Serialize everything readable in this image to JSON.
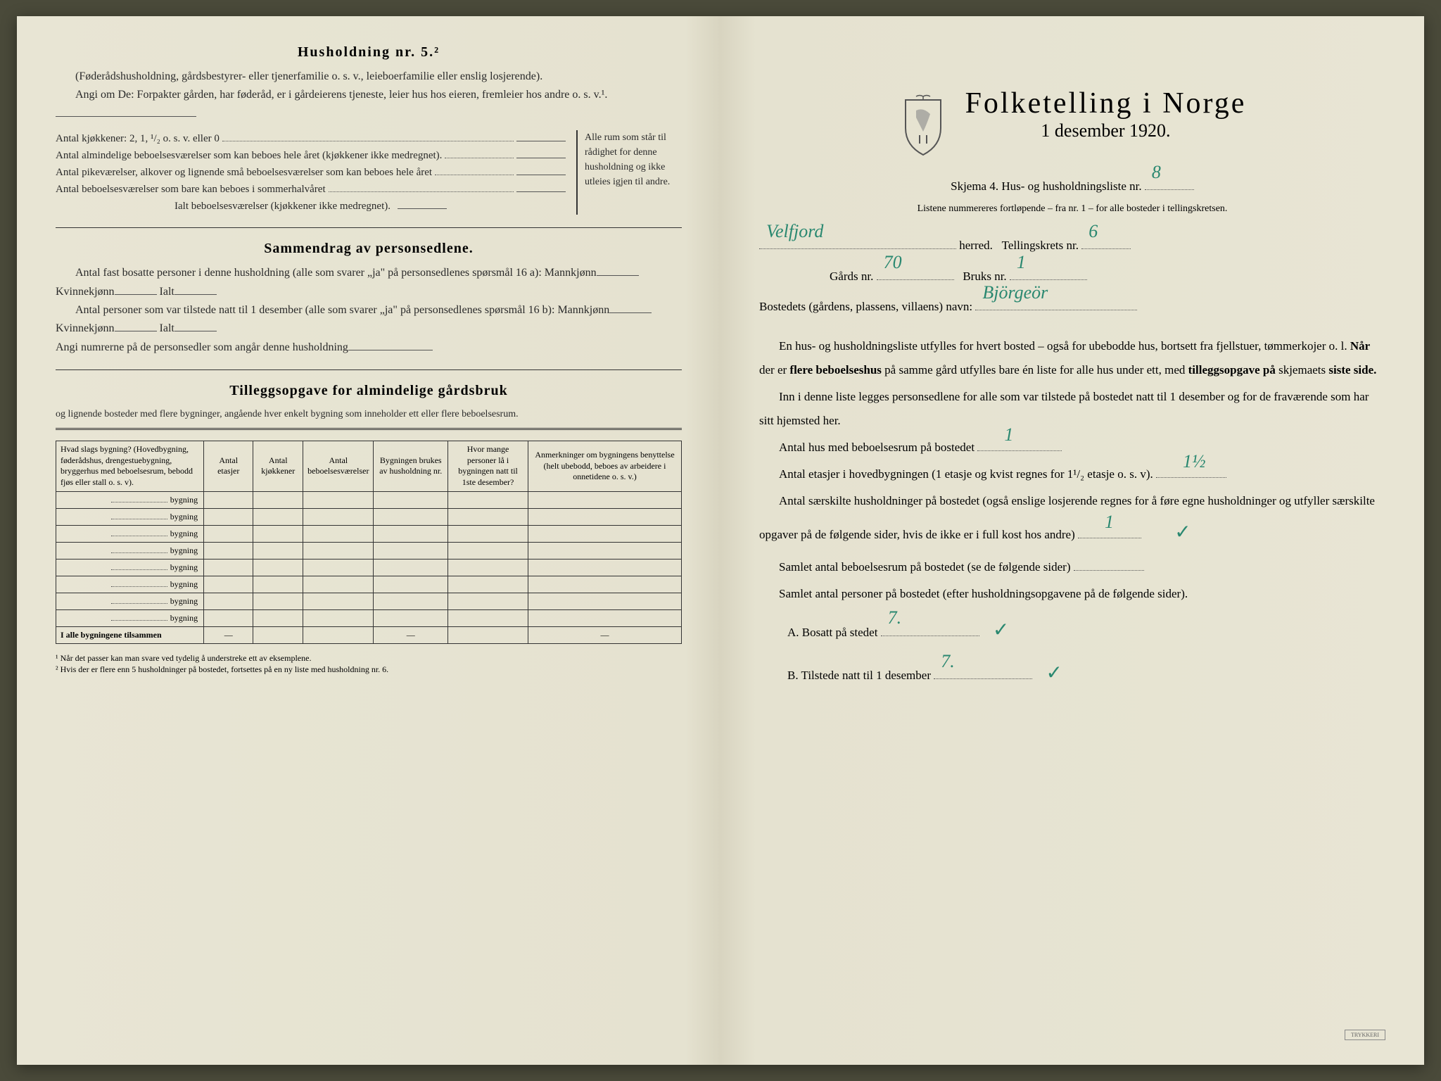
{
  "left": {
    "section1": {
      "title": "Husholdning nr. 5.²",
      "intro": "(Føderådshusholdning, gårdsbestyrer- eller tjenerfamilie o. s. v., leieboerfamilie eller enslig losjerende).",
      "line1": "Angi om De: Forpakter gården, har føderåd, er i gårdeierens tjeneste, leier hus hos eieren, fremleier hos andre o. s. v.¹.",
      "kitchens": "Antal kjøkkener: 2, 1, ¹/₂ o. s. v. eller 0",
      "rooms": [
        "Antal almindelige beboelsesværelser som kan beboes hele året (kjøkkener ikke medregnet).",
        "Antal pikeværelser, alkover og lignende små beboelsesværelser som kan beboes hele året",
        "Antal beboelsesværelser som bare kan beboes i sommerhalvåret"
      ],
      "total": "Ialt beboelsesværelser  (kjøkkener ikke medregnet).",
      "brace_text": "Alle rum som står til rådighet for denne husholdning og ikke utleies igjen til andre."
    },
    "section2": {
      "title": "Sammendrag av personsedlene.",
      "line1": "Antal fast bosatte personer i denne husholdning (alle som svarer „ja\" på personsedlenes spørsmål 16 a): Mannkjønn",
      "kvin": "Kvinnekjønn",
      "ialt": "Ialt",
      "line2": "Antal personer som var tilstede natt til 1 desember (alle som svarer „ja\" på personsedlenes spørsmål 16 b): Mannkjønn",
      "line3": "Angi numrerne på de personsedler som angår denne husholdning"
    },
    "section3": {
      "title": "Tilleggsopgave for almindelige gårdsbruk",
      "subtitle": "og lignende bosteder med flere bygninger, angående hver enkelt bygning som inneholder ett eller flere beboelsesrum.",
      "headers": [
        "Hvad slags bygning?\n(Hovedbygning, føderådshus, drengestuebygning, bryggerhus med beboelsesrum, bebodd fjøs eller stall o. s. v).",
        "Antal etasjer",
        "Antal kjøkkener",
        "Antal beboelsesværelser",
        "Bygningen brukes av husholdning nr.",
        "Hvor mange personer lå i bygningen natt til 1ste desember?",
        "Anmerkninger om bygningens benyttelse (helt ubebodd, beboes av arbeidere i onnetidene o. s. v.)"
      ],
      "building_label": "bygning",
      "total_row": "I alle bygningene tilsammen",
      "rows": 8
    },
    "footnotes": [
      "¹  Når det passer kan man svare ved tydelig å understreke ett av eksemplene.",
      "²  Hvis der er flere enn 5 husholdninger på bostedet, fortsettes på en ny liste med husholdning nr. 6."
    ]
  },
  "right": {
    "title": "Folketelling i Norge",
    "subtitle": "1 desember 1920.",
    "form_label": "Skjema 4.  Hus- og husholdningsliste nr.",
    "form_nr": "8",
    "list_note": "Listene nummereres fortløpende – fra nr. 1 – for alle bosteder i tellingskretsen.",
    "herred_val": "Velfjord",
    "herred_label": "herred.",
    "krets_label": "Tellingskrets nr.",
    "krets_val": "6",
    "gards_label": "Gårds nr.",
    "gards_val": "70",
    "bruks_label": "Bruks nr.",
    "bruks_val": "1",
    "bosted_label": "Bostedets (gårdens, plassens, villaens) navn:",
    "bosted_val": "Björgeör",
    "para1": "En hus- og husholdningsliste utfylles for hvert bosted – også for ubebodde hus, bortsett fra fjellstuer, tømmerkojer o. l.  Når der er flere beboelseshus på samme gård utfylles bare én liste for alle hus under ett, med tilleggsopgave på skjemaets siste side.",
    "para2": "Inn i denne liste legges personsedlene for alle som var tilstede på bostedet natt til 1 desember og for de fraværende som har sitt hjemsted her.",
    "q1": "Antal hus med beboelsesrum på bostedet",
    "q1_val": "1",
    "q2a": "Antal etasjer i hovedbygningen (1 etasje og kvist regnes for 1¹/₂ etasje o. s. v).",
    "q2_val": "1½",
    "q3": "Antal særskilte husholdninger på bostedet (også enslige losjerende regnes for å føre egne husholdninger og utfyller særskilte opgaver på de følgende sider, hvis de ikke er i full kost hos andre)",
    "q3_val": "1",
    "q4": "Samlet antal beboelsesrum på bostedet (se de følgende sider)",
    "q5": "Samlet antal personer på bostedet (efter husholdningsopgavene på de følgende sider).",
    "qA_label": "A.  Bosatt på stedet",
    "qA_val": "7.",
    "qB_label": "B.  Tilstede natt til 1 desember",
    "qB_val": "7.",
    "stamp": "TRYKKERI"
  },
  "colors": {
    "paper": "#e8e5d4",
    "ink": "#2a2a2a",
    "handwriting": "#2a8870"
  }
}
